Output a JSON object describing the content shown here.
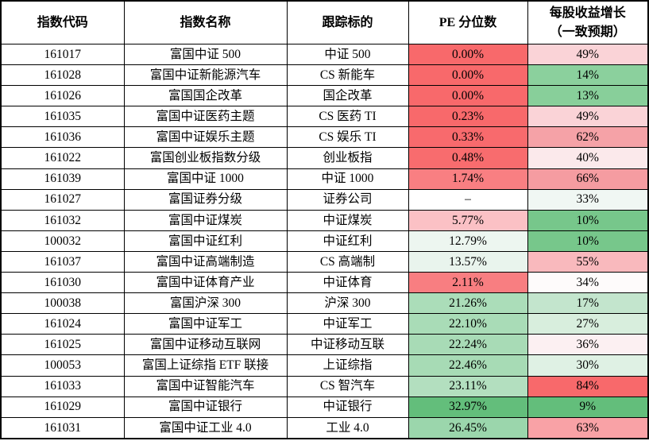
{
  "table": {
    "columns": [
      {
        "label": "指数代码"
      },
      {
        "label": "指数名称"
      },
      {
        "label": "跟踪标的"
      },
      {
        "label": "PE 分位数"
      },
      {
        "label": "每股收益增长\n（一致预期）"
      }
    ],
    "rows": [
      {
        "code": "161017",
        "name": "富国中证 500",
        "target": "中证 500",
        "pe": "0.00%",
        "pe_bg": "#F8696B",
        "eps": "49%",
        "eps_bg": "#FAD3D7"
      },
      {
        "code": "161028",
        "name": "富国中证新能源汽车",
        "target": "CS 新能车",
        "pe": "0.00%",
        "pe_bg": "#F8696B",
        "eps": "14%",
        "eps_bg": "#8BD09D"
      },
      {
        "code": "161026",
        "name": "富国国企改革",
        "target": "国企改革",
        "pe": "0.00%",
        "pe_bg": "#F8696B",
        "eps": "13%",
        "eps_bg": "#88CF9A"
      },
      {
        "code": "161035",
        "name": "富国中证医药主题",
        "target": "CS 医药 TI",
        "pe": "0.23%",
        "pe_bg": "#F8696B",
        "eps": "49%",
        "eps_bg": "#FAD3D7"
      },
      {
        "code": "161036",
        "name": "富国中证娱乐主题",
        "target": "CS 娱乐 TI",
        "pe": "0.33%",
        "pe_bg": "#F86A6D",
        "eps": "62%",
        "eps_bg": "#F5A2A7"
      },
      {
        "code": "161022",
        "name": "富国创业板指数分级",
        "target": "创业板指",
        "pe": "0.48%",
        "pe_bg": "#F86C6E",
        "eps": "40%",
        "eps_bg": "#FBE9EB"
      },
      {
        "code": "161039",
        "name": "富国中证 1000",
        "target": "中证 1000",
        "pe": "1.74%",
        "pe_bg": "#F97F82",
        "eps": "66%",
        "eps_bg": "#F59CA1"
      },
      {
        "code": "161027",
        "name": "富国证券分级",
        "target": "证券公司",
        "pe": "–",
        "pe_bg": "#FFFFFF",
        "eps": "33%",
        "eps_bg": "#F0F7F3"
      },
      {
        "code": "161032",
        "name": "富国中证煤炭",
        "target": "中证煤炭",
        "pe": "5.77%",
        "pe_bg": "#FBC1C5",
        "eps": "10%",
        "eps_bg": "#77C78B"
      },
      {
        "code": "100032",
        "name": "富国中证红利",
        "target": "中证红利",
        "pe": "12.79%",
        "pe_bg": "#EDF6F0",
        "eps": "10%",
        "eps_bg": "#77C78B"
      },
      {
        "code": "161037",
        "name": "富国中证高端制造",
        "target": "CS 高端制",
        "pe": "13.57%",
        "pe_bg": "#E9F4ED",
        "eps": "55%",
        "eps_bg": "#F9B9BD"
      },
      {
        "code": "161030",
        "name": "富国中证体育产业",
        "target": "中证体育",
        "pe": "2.11%",
        "pe_bg": "#F87E81",
        "eps": "34%",
        "eps_bg": "#FEFBFB"
      },
      {
        "code": "100038",
        "name": "富国沪深 300",
        "target": "沪深 300",
        "pe": "21.26%",
        "pe_bg": "#ABDDB9",
        "eps": "17%",
        "eps_bg": "#C3E5CD"
      },
      {
        "code": "161024",
        "name": "富国中证军工",
        "target": "中证军工",
        "pe": "22.10%",
        "pe_bg": "#A9DCB7",
        "eps": "27%",
        "eps_bg": "#D8EEDD"
      },
      {
        "code": "161025",
        "name": "富国中证移动互联网",
        "target": "中证移动互联",
        "pe": "22.24%",
        "pe_bg": "#A8DBB6",
        "eps": "36%",
        "eps_bg": "#FCF0F2"
      },
      {
        "code": "100053",
        "name": "富国上证综指 ETF 联接",
        "target": "上证综指",
        "pe": "22.46%",
        "pe_bg": "#A7DBB5",
        "eps": "30%",
        "eps_bg": "#DFF1E4"
      },
      {
        "code": "161033",
        "name": "富国中证智能汽车",
        "target": "CS 智汽车",
        "pe": "23.11%",
        "pe_bg": "#B3DFBF",
        "eps": "84%",
        "eps_bg": "#F8696B"
      },
      {
        "code": "161029",
        "name": "富国中证银行",
        "target": "中证银行",
        "pe": "32.97%",
        "pe_bg": "#63BE7B",
        "eps": "9%",
        "eps_bg": "#63BE7B"
      },
      {
        "code": "161031",
        "name": "富国中证工业 4.0",
        "target": "工业 4.0",
        "pe": "26.45%",
        "pe_bg": "#9BD6AC",
        "eps": "63%",
        "eps_bg": "#F9A2A6"
      }
    ]
  },
  "colors": {
    "scale_red_max": "#F8696B",
    "scale_white_mid": "#FCFCFF",
    "scale_green_max": "#63BE7B",
    "border": "#000000"
  },
  "chart_data": {
    "type": "table",
    "title": "",
    "columns": [
      "指数代码",
      "指数名称",
      "跟踪标的",
      "PE 分位数",
      "每股收益增长（一致预期）"
    ],
    "rows": [
      [
        "161017",
        "富国中证 500",
        "中证 500",
        "0.00%",
        "49%"
      ],
      [
        "161028",
        "富国中证新能源汽车",
        "CS 新能车",
        "0.00%",
        "14%"
      ],
      [
        "161026",
        "富国国企改革",
        "国企改革",
        "0.00%",
        "13%"
      ],
      [
        "161035",
        "富国中证医药主题",
        "CS 医药 TI",
        "0.23%",
        "49%"
      ],
      [
        "161036",
        "富国中证娱乐主题",
        "CS 娱乐 TI",
        "0.33%",
        "62%"
      ],
      [
        "161022",
        "富国创业板指数分级",
        "创业板指",
        "0.48%",
        "40%"
      ],
      [
        "161039",
        "富国中证 1000",
        "中证 1000",
        "1.74%",
        "66%"
      ],
      [
        "161027",
        "富国证券分级",
        "证券公司",
        "–",
        "33%"
      ],
      [
        "161032",
        "富国中证煤炭",
        "中证煤炭",
        "5.77%",
        "10%"
      ],
      [
        "100032",
        "富国中证红利",
        "中证红利",
        "12.79%",
        "10%"
      ],
      [
        "161037",
        "富国中证高端制造",
        "CS 高端制",
        "13.57%",
        "55%"
      ],
      [
        "161030",
        "富国中证体育产业",
        "中证体育",
        "2.11%",
        "34%"
      ],
      [
        "100038",
        "富国沪深 300",
        "沪深 300",
        "21.26%",
        "17%"
      ],
      [
        "161024",
        "富国中证军工",
        "中证军工",
        "22.10%",
        "27%"
      ],
      [
        "161025",
        "富国中证移动互联网",
        "中证移动互联",
        "22.24%",
        "36%"
      ],
      [
        "100053",
        "富国上证综指 ETF 联接",
        "上证综指",
        "22.46%",
        "30%"
      ],
      [
        "161033",
        "富国中证智能汽车",
        "CS 智汽车",
        "23.11%",
        "84%"
      ],
      [
        "161029",
        "富国中证银行",
        "中证银行",
        "32.97%",
        "9%"
      ],
      [
        "161031",
        "富国中证工业 4.0",
        "工业 4.0",
        "26.45%",
        "63%"
      ]
    ],
    "layout_hints": {
      "pe_column_color_scale": "3-color scale: low PE = red #F8696B, mid ≈13% = white, high PE = green #63BE7B",
      "eps_column_color_scale": "3-color scale: low growth = green #63BE7B, mid ≈34% = white, high growth = red #F8696B",
      "grid": "black 1px inner borders, 2px outer border"
    }
  }
}
